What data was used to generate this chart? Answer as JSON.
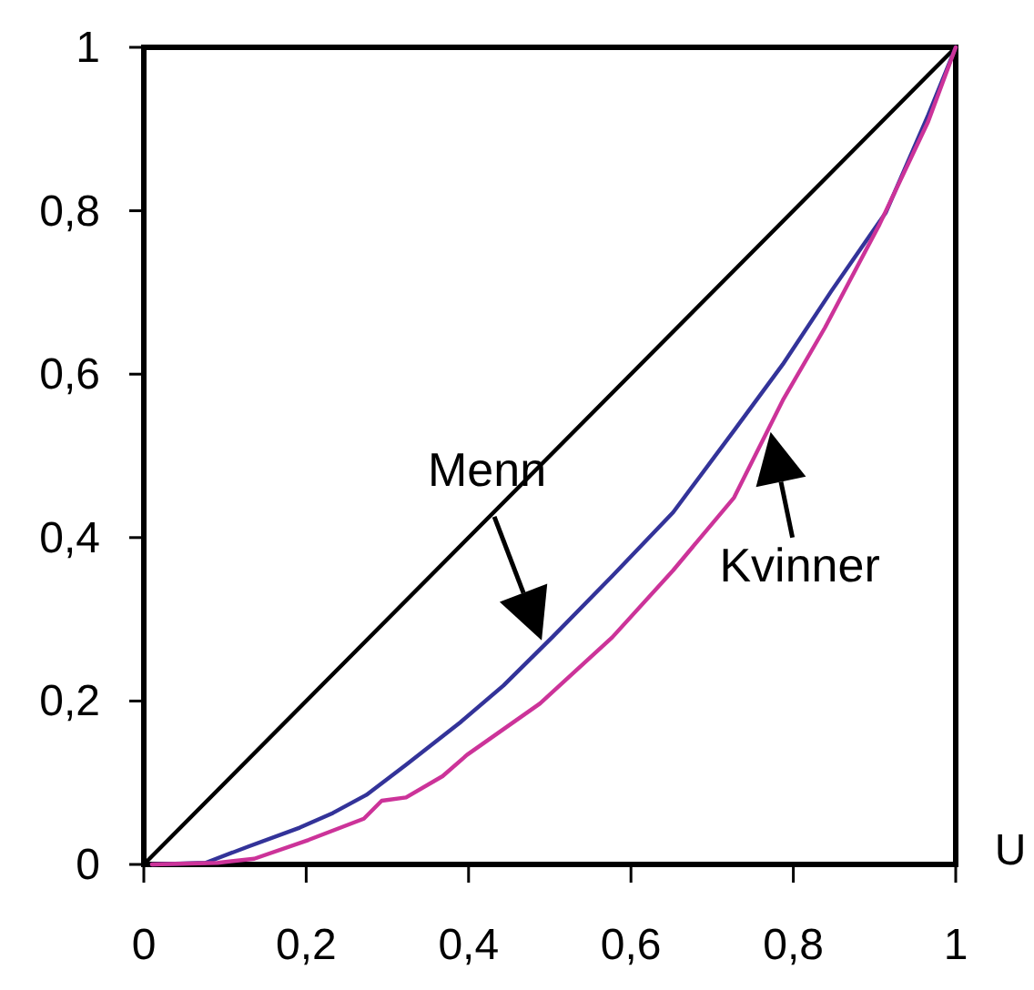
{
  "chart_data": {
    "type": "line",
    "xlabel": "U",
    "xlim": [
      0,
      1
    ],
    "ylim": [
      0,
      1
    ],
    "xticks": [
      0,
      {
        "value": 0.2,
        "label": "0,2"
      },
      {
        "value": 0.4,
        "label": "0,4"
      },
      {
        "value": 0.6,
        "label": "0,6"
      },
      {
        "value": 0.8,
        "label": "0,8"
      },
      1
    ],
    "yticks": [
      0,
      {
        "value": 0.2,
        "label": "0,2"
      },
      {
        "value": 0.4,
        "label": "0,4"
      },
      {
        "value": 0.6,
        "label": "0,6"
      },
      {
        "value": 0.8,
        "label": "0,8"
      },
      1
    ],
    "grid": false,
    "marker": "none",
    "line_style": "solid",
    "series": [
      {
        "color": "#000000",
        "x": [
          0,
          1
        ],
        "values": [
          0,
          1
        ]
      },
      {
        "name": "Menn",
        "color": "#333399",
        "x": [
          0.01,
          0.076,
          0.129,
          0.192,
          0.233,
          0.274,
          0.323,
          0.39,
          0.443,
          0.503,
          0.577,
          0.652,
          0.727,
          0.787,
          0.847,
          0.914,
          0.966,
          1
        ],
        "values": [
          0,
          0.002,
          0.022,
          0.045,
          0.063,
          0.085,
          0.122,
          0.174,
          0.219,
          0.278,
          0.353,
          0.431,
          0.531,
          0.612,
          0.702,
          0.798,
          0.917,
          1
        ]
      },
      {
        "name": "Kvinner",
        "color": "#cc3399",
        "x": [
          0.01,
          0.091,
          0.136,
          0.203,
          0.271,
          0.293,
          0.323,
          0.368,
          0.398,
          0.488,
          0.577,
          0.652,
          0.727,
          0.787,
          0.839,
          0.906,
          0.966,
          1
        ],
        "values": [
          0,
          0.002,
          0.007,
          0.03,
          0.056,
          0.078,
          0.082,
          0.108,
          0.134,
          0.197,
          0.278,
          0.36,
          0.449,
          0.568,
          0.657,
          0.783,
          0.909,
          1
        ]
      }
    ]
  }
}
